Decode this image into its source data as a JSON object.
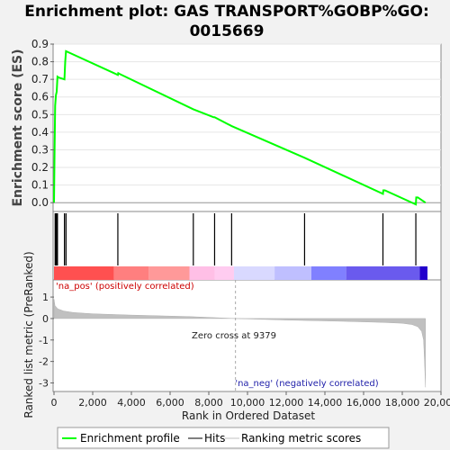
{
  "chart_data": {
    "type": "line",
    "title": "Enrichment plot: GAS TRANSPORT%GOBP%GO:\n0015669",
    "top_panel": {
      "ylabel": "Enrichment score (ES)",
      "ylim": [
        -0.05,
        0.9
      ],
      "yticks": [
        "0.0",
        "0.1",
        "0.2",
        "0.3",
        "0.4",
        "0.5",
        "0.6",
        "0.7",
        "0.8",
        "0.9"
      ],
      "series": [
        {
          "name": "Enrichment profile",
          "color": "#00ff00",
          "x": [
            0,
            30,
            60,
            100,
            140,
            180,
            250,
            540,
            580,
            620,
            3300,
            3320,
            3400,
            7200,
            8250,
            8300,
            9180,
            12950,
            17000,
            17020,
            17100,
            18700,
            18720,
            18800,
            19200
          ],
          "y": [
            0.0,
            0.3,
            0.55,
            0.61,
            0.63,
            0.715,
            0.71,
            0.7,
            0.8,
            0.86,
            0.725,
            0.735,
            0.73,
            0.53,
            0.485,
            0.485,
            0.435,
            0.255,
            0.05,
            0.07,
            0.07,
            -0.01,
            0.03,
            0.03,
            0.0
          ]
        }
      ]
    },
    "hits": {
      "name": "Hits",
      "color": "#000000",
      "x": [
        60,
        100,
        140,
        180,
        540,
        620,
        3300,
        7200,
        8300,
        9180,
        12950,
        17000,
        18700
      ]
    },
    "bands": [
      {
        "from": 0,
        "to": 3100,
        "color": "#ff5050"
      },
      {
        "from": 3100,
        "to": 4900,
        "color": "#ff7f7f"
      },
      {
        "from": 4900,
        "to": 7000,
        "color": "#ff9999"
      },
      {
        "from": 7000,
        "to": 8300,
        "color": "#ffbfe6"
      },
      {
        "from": 8300,
        "to": 9300,
        "color": "#ffccf0"
      },
      {
        "from": 9300,
        "to": 11400,
        "color": "#d9d9ff"
      },
      {
        "from": 11400,
        "to": 13300,
        "color": "#bfbfff"
      },
      {
        "from": 13300,
        "to": 15100,
        "color": "#8080ff"
      },
      {
        "from": 15100,
        "to": 18900,
        "color": "#6a5aee"
      },
      {
        "from": 18900,
        "to": 19300,
        "color": "#2200cc"
      }
    ],
    "bottom_panel": {
      "ylabel": "Ranked list metric (PreRanked)",
      "xlabel": "Rank in Ordered Dataset",
      "xlim": [
        0,
        20000
      ],
      "ylim": [
        -3.4,
        1.8
      ],
      "xticks": [
        "0",
        "2,000",
        "4,000",
        "6,000",
        "8,000",
        "10,000",
        "12,000",
        "14,000",
        "16,000",
        "18,000",
        "20,000"
      ],
      "yticks": [
        "1",
        "0",
        "-1",
        "-2",
        "-3"
      ],
      "series": [
        {
          "name": "Ranking metric scores",
          "color": "#c0c0c0",
          "x": [
            0,
            50,
            200,
            500,
            1000,
            2000,
            4000,
            7000,
            9379,
            12000,
            15000,
            17000,
            18000,
            18500,
            18800,
            19000,
            19100,
            19150,
            19200
          ],
          "y": [
            0.9,
            0.6,
            0.45,
            0.35,
            0.28,
            0.22,
            0.16,
            0.09,
            0.0,
            -0.07,
            -0.13,
            -0.18,
            -0.22,
            -0.28,
            -0.38,
            -0.6,
            -1.0,
            -2.0,
            -3.2
          ]
        }
      ],
      "annotations": {
        "pos": "'na_pos' (positively correlated)",
        "zero": "Zero cross at 9379",
        "neg": "'na_neg' (negatively correlated)"
      },
      "zero_cross": 9379
    },
    "legend": {
      "position": "bottom",
      "items": [
        {
          "label": "Enrichment profile",
          "color": "#00ff00"
        },
        {
          "label": "Hits",
          "color": "#000000"
        },
        {
          "label": "Ranking metric scores",
          "color": "#c0c0c0"
        }
      ]
    }
  }
}
